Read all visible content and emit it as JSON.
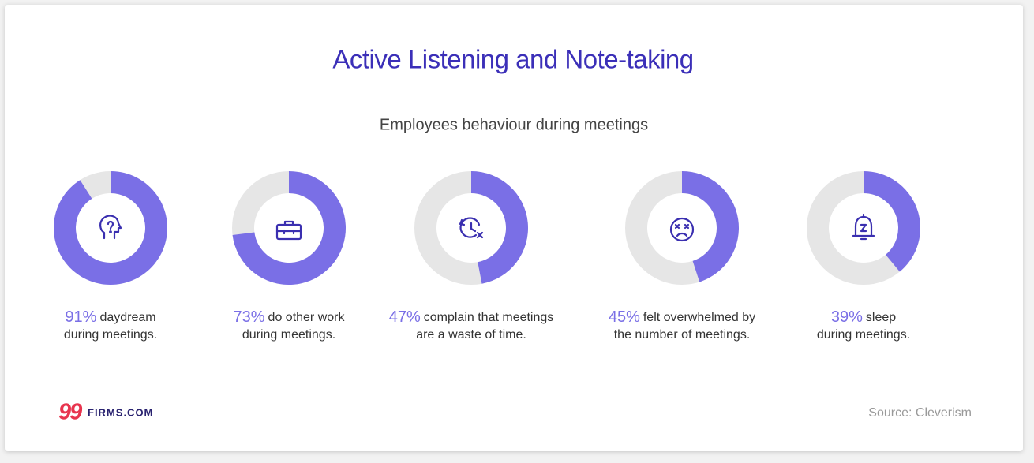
{
  "title": "Active Listening and Note-taking",
  "subtitle": "Employees behaviour during meetings",
  "chart_data": [
    {
      "type": "donut",
      "values": [
        91
      ],
      "value_labels": [
        "91%"
      ],
      "caption": [
        "daydream",
        "during meetings."
      ],
      "color": "#7a6fe6",
      "track_color": "#e6e6e6"
    },
    {
      "type": "donut",
      "values": [
        73
      ],
      "value_labels": [
        "73%"
      ],
      "caption": [
        "do other work",
        "during meetings."
      ],
      "color": "#7a6fe6",
      "track_color": "#e6e6e6"
    },
    {
      "type": "donut",
      "values": [
        47
      ],
      "value_labels": [
        "47%"
      ],
      "caption": [
        "complain that meetings",
        "are a waste of time."
      ],
      "color": "#7a6fe6",
      "track_color": "#e6e6e6"
    },
    {
      "type": "donut",
      "values": [
        45
      ],
      "value_labels": [
        "45%"
      ],
      "caption": [
        "felt overwhelmed by",
        "the number of meetings."
      ],
      "color": "#7a6fe6",
      "track_color": "#e6e6e6"
    },
    {
      "type": "donut",
      "values": [
        39
      ],
      "value_labels": [
        "39%"
      ],
      "caption": [
        "sleep",
        "during meetings."
      ],
      "color": "#7a6fe6",
      "track_color": "#e6e6e6"
    }
  ],
  "logo": {
    "mark": "99",
    "text": "FIRMS.COM"
  },
  "source": "Source: Cleverism"
}
